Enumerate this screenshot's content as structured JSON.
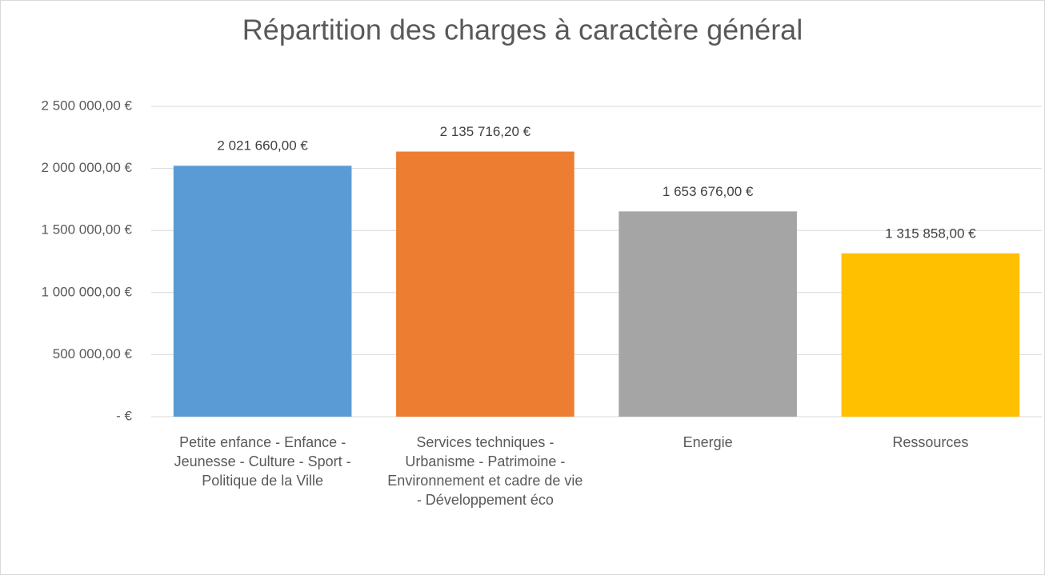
{
  "chart_data": {
    "type": "bar",
    "title": "Répartition des charges à caractère général",
    "categories": [
      "Petite enfance - Enfance - Jeunesse - Culture - Sport - Politique de la Ville",
      "Services techniques - Urbanisme - Patrimoine - Environnement et cadre de vie - Développement éco",
      "Energie",
      "Ressources"
    ],
    "values": [
      2021660,
      2135716.2,
      1653676,
      1315858
    ],
    "value_labels": [
      "2 021 660,00 €",
      "2 135 716,20 €",
      "1 653 676,00 €",
      "1 315 858,00 €"
    ],
    "colors": [
      "#5b9bd5",
      "#ed7d31",
      "#a5a5a5",
      "#ffc000"
    ],
    "ylim": [
      0,
      2500000
    ],
    "yticks": [
      {
        "value": 0,
        "label": "-  €"
      },
      {
        "value": 500000,
        "label": "500 000,00 €"
      },
      {
        "value": 1000000,
        "label": "1 000 000,00 €"
      },
      {
        "value": 1500000,
        "label": "1 500 000,00 €"
      },
      {
        "value": 2000000,
        "label": "2 000 000,00 €"
      },
      {
        "value": 2500000,
        "label": "2 500 000,00 €"
      }
    ],
    "grid": true
  }
}
